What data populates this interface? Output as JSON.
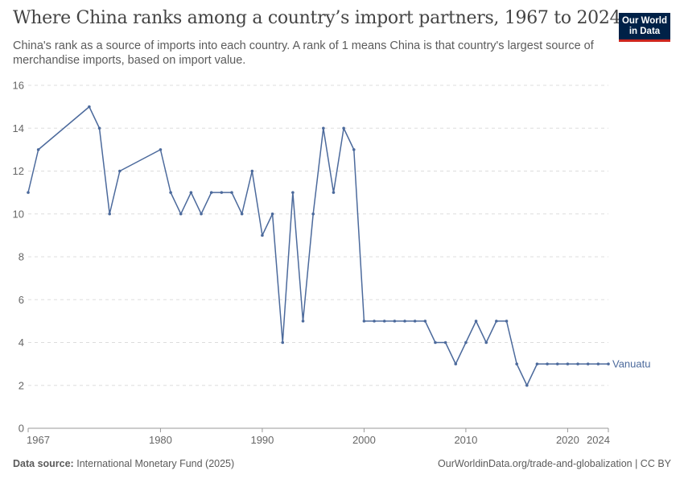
{
  "header": {
    "title": "Where China ranks among a country’s import partners, 1967 to 2024",
    "subtitle": "China's rank as a source of imports into each country. A rank of 1 means China is that country's largest source of merchandise imports, based on import value."
  },
  "logo": {
    "line1": "Our World",
    "line2": "in Data"
  },
  "footer": {
    "source_label": "Data source:",
    "source_text": "International Monetary Fund (2025)",
    "right_text": "OurWorldinData.org/trade-and-globalization | CC BY"
  },
  "colors": {
    "series": "#4c6a9c",
    "grid": "#dddddd",
    "axis": "#666666"
  },
  "chart_data": {
    "type": "line",
    "title": "Where China ranks among a country’s import partners, 1967 to 2024",
    "xlabel": "",
    "ylabel": "",
    "xlim": [
      1967,
      2024
    ],
    "ylim": [
      0,
      16
    ],
    "x_ticks": [
      1967,
      1980,
      1990,
      2000,
      2010,
      2020,
      2024
    ],
    "y_ticks": [
      0,
      2,
      4,
      6,
      8,
      10,
      12,
      14,
      16
    ],
    "grid": true,
    "series": [
      {
        "name": "Vanuatu",
        "x": [
          1967,
          1968,
          1973,
          1974,
          1975,
          1976,
          1980,
          1981,
          1982,
          1983,
          1984,
          1985,
          1986,
          1987,
          1988,
          1989,
          1990,
          1991,
          1992,
          1993,
          1994,
          1995,
          1996,
          1997,
          1998,
          1999,
          2000,
          2001,
          2002,
          2003,
          2004,
          2005,
          2006,
          2007,
          2008,
          2009,
          2010,
          2011,
          2012,
          2013,
          2014,
          2015,
          2016,
          2017,
          2018,
          2019,
          2020,
          2021,
          2022,
          2023,
          2024
        ],
        "values": [
          11,
          13,
          15,
          14,
          10,
          12,
          13,
          11,
          10,
          11,
          10,
          11,
          11,
          11,
          10,
          12,
          9,
          10,
          4,
          11,
          5,
          10,
          14,
          11,
          14,
          13,
          5,
          5,
          5,
          5,
          5,
          5,
          5,
          4,
          4,
          3,
          4,
          5,
          4,
          5,
          5,
          3,
          2,
          3,
          3,
          3,
          3,
          3,
          3,
          3,
          3
        ]
      }
    ]
  }
}
